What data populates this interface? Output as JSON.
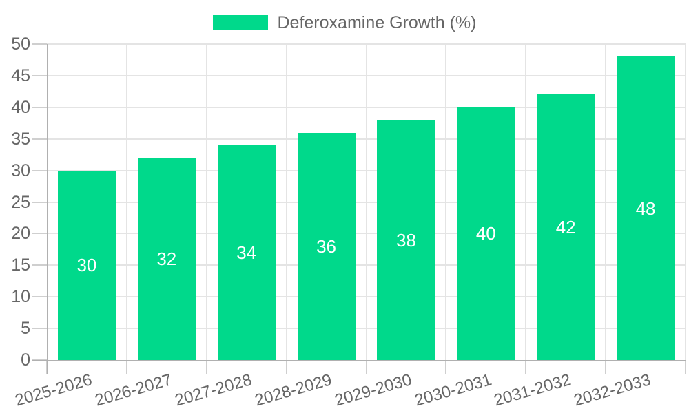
{
  "legend": {
    "label": "Deferoxamine Growth (%)",
    "swatch_color": "#00D98B"
  },
  "chart_data": {
    "type": "bar",
    "title": "",
    "xlabel": "",
    "ylabel": "",
    "categories": [
      "2025-2026",
      "2026-2027",
      "2027-2028",
      "2028-2029",
      "2029-2030",
      "2030-2031",
      "2031-2032",
      "2032-2033"
    ],
    "series": [
      {
        "name": "Deferoxamine Growth (%)",
        "values": [
          30,
          32,
          34,
          36,
          38,
          40,
          42,
          48
        ]
      }
    ],
    "value_labels_shown": true,
    "value_label_position": "inside-center",
    "ylim": [
      0,
      50
    ],
    "yticks": [
      0,
      5,
      10,
      15,
      20,
      25,
      30,
      35,
      40,
      45,
      50
    ],
    "grid": true,
    "legend_position": "top-center",
    "colors": {
      "bar": "#00D98B",
      "value_label": "#ffffff",
      "axis_text": "#666666",
      "gridline": "#e4e4e4",
      "axis_line": "#b0b0b0",
      "tick_line": "#cfcfcf",
      "background": "#ffffff"
    }
  }
}
